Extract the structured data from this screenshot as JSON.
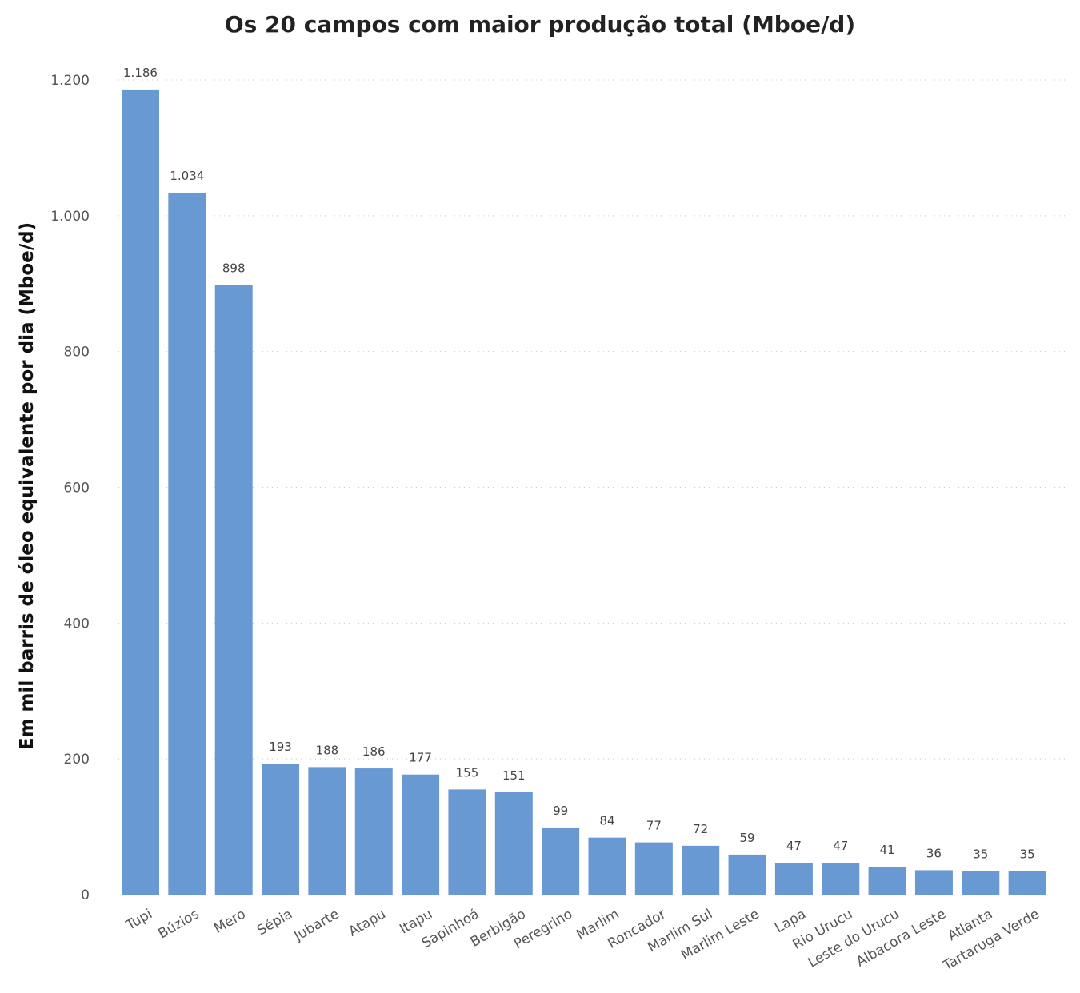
{
  "chart_data": {
    "type": "bar",
    "title": "Os 20 campos com maior produção total (Mboe/d)",
    "xlabel": "",
    "ylabel": "Em mil barris de óleo equivalente por dia (Mboe/d)",
    "ylim": [
      0,
      1200
    ],
    "yticks": [
      0,
      200,
      400,
      600,
      800,
      1000,
      1200
    ],
    "ytick_labels": [
      "0",
      "200",
      "400",
      "600",
      "800",
      "1.000",
      "1.200"
    ],
    "grid": true,
    "bar_color": "#6999d2",
    "categories": [
      "Tupi",
      "Búzios",
      "Mero",
      "Sépia",
      "Jubarte",
      "Atapu",
      "Itapu",
      "Sapinhoá",
      "Berbigão",
      "Peregrino",
      "Marlim",
      "Roncador",
      "Marlim Sul",
      "Marlim Leste",
      "Lapa",
      "Rio Urucu",
      "Leste do Urucu",
      "Albacora Leste",
      "Atlanta",
      "Tartaruga Verde"
    ],
    "values": [
      1186,
      1034,
      898,
      193,
      188,
      186,
      177,
      155,
      151,
      99,
      84,
      77,
      72,
      59,
      47,
      47,
      41,
      36,
      35,
      35
    ],
    "value_labels": [
      "1.186",
      "1.034",
      "898",
      "193",
      "188",
      "186",
      "177",
      "155",
      "151",
      "99",
      "84",
      "77",
      "72",
      "59",
      "47",
      "47",
      "41",
      "36",
      "35",
      "35"
    ]
  }
}
